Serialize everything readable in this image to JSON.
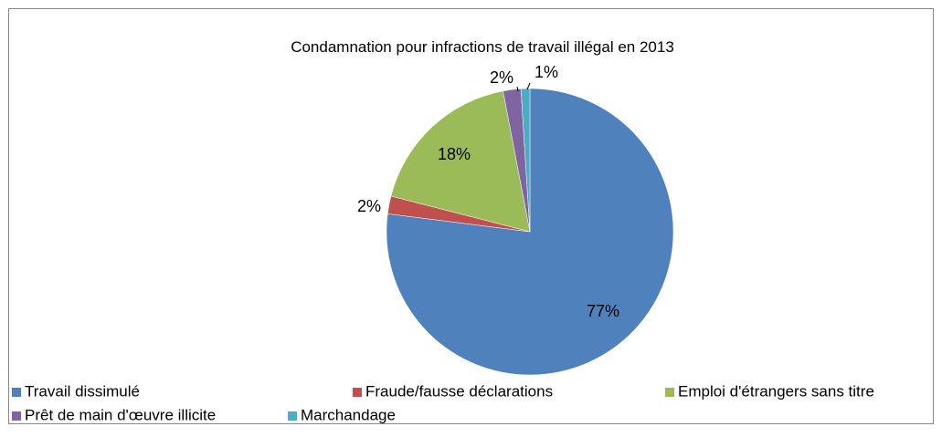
{
  "chart_data": {
    "type": "pie",
    "title": "Condamnation pour infractions de travail illégal en 2013",
    "categories": [
      "Travail dissimulé",
      "Fraude/fausse déclarations",
      "Emploi d'étrangers sans titre",
      "Prêt de main d'œuvre illicite",
      "Marchandage"
    ],
    "values": [
      77,
      2,
      18,
      2,
      1
    ],
    "value_labels": [
      "77%",
      "2%",
      "18%",
      "2%",
      "1%"
    ],
    "colors": [
      "#4f81bd",
      "#c0504d",
      "#9bbb59",
      "#8064a2",
      "#4bacc6"
    ],
    "legend": "bottom"
  }
}
